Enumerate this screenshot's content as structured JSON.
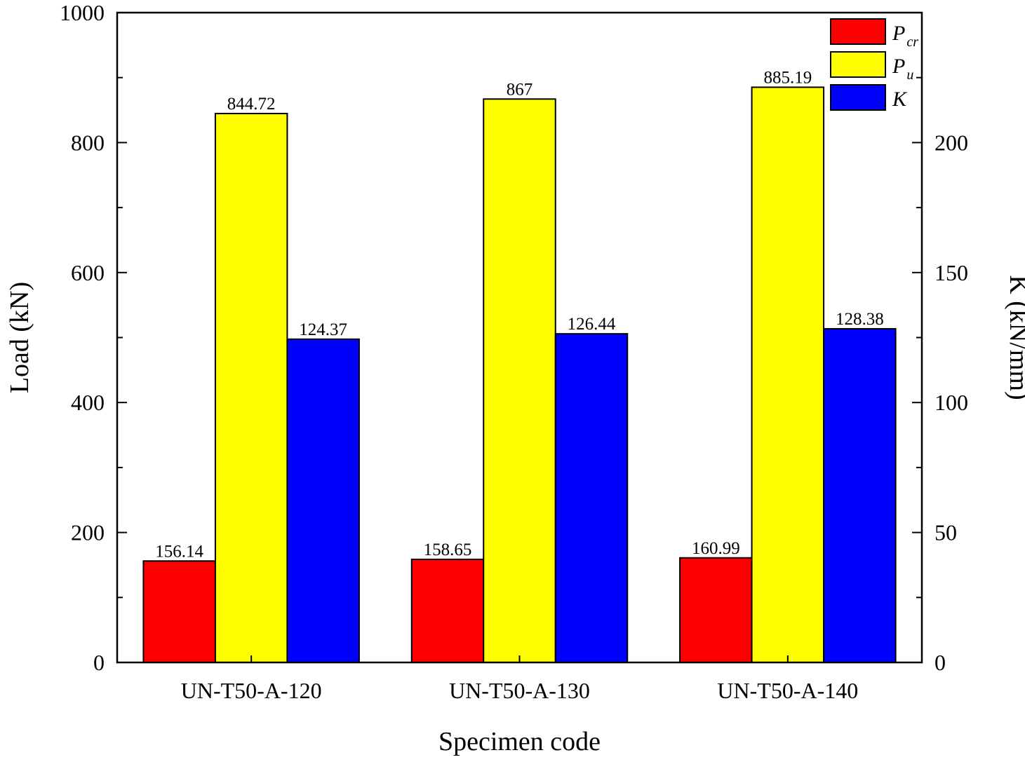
{
  "chart_data": {
    "type": "bar",
    "categories": [
      "UN-T50-A-120",
      "UN-T50-A-130",
      "UN-T50-A-140"
    ],
    "xlabel": "Specimen code",
    "ylabel": "Load (kN)",
    "y2label": "K (kN/mm)",
    "ylim": [
      0,
      1000
    ],
    "y2lim": [
      0,
      250
    ],
    "yticks": [
      0,
      200,
      400,
      600,
      800,
      1000
    ],
    "y2ticks": [
      0,
      50,
      100,
      150,
      200
    ],
    "legend_position": "top-right",
    "series": [
      {
        "name": "Pcr",
        "legend_main": "P",
        "legend_sub": "cr",
        "axis": "left",
        "color": "#ff0000",
        "values": [
          156.14,
          158.65,
          160.99
        ],
        "labels": [
          "156.14",
          "158.65",
          "160.99"
        ]
      },
      {
        "name": "Pu",
        "legend_main": "P",
        "legend_sub": "u",
        "axis": "left",
        "color": "#ffff00",
        "values": [
          844.72,
          867,
          885.19
        ],
        "labels": [
          "844.72",
          "867",
          "885.19"
        ]
      },
      {
        "name": "K",
        "legend_main": "K",
        "legend_sub": "",
        "axis": "right",
        "color": "#0000ff",
        "values": [
          124.37,
          126.44,
          128.38
        ],
        "labels": [
          "124.37",
          "126.44",
          "128.38"
        ]
      }
    ]
  }
}
